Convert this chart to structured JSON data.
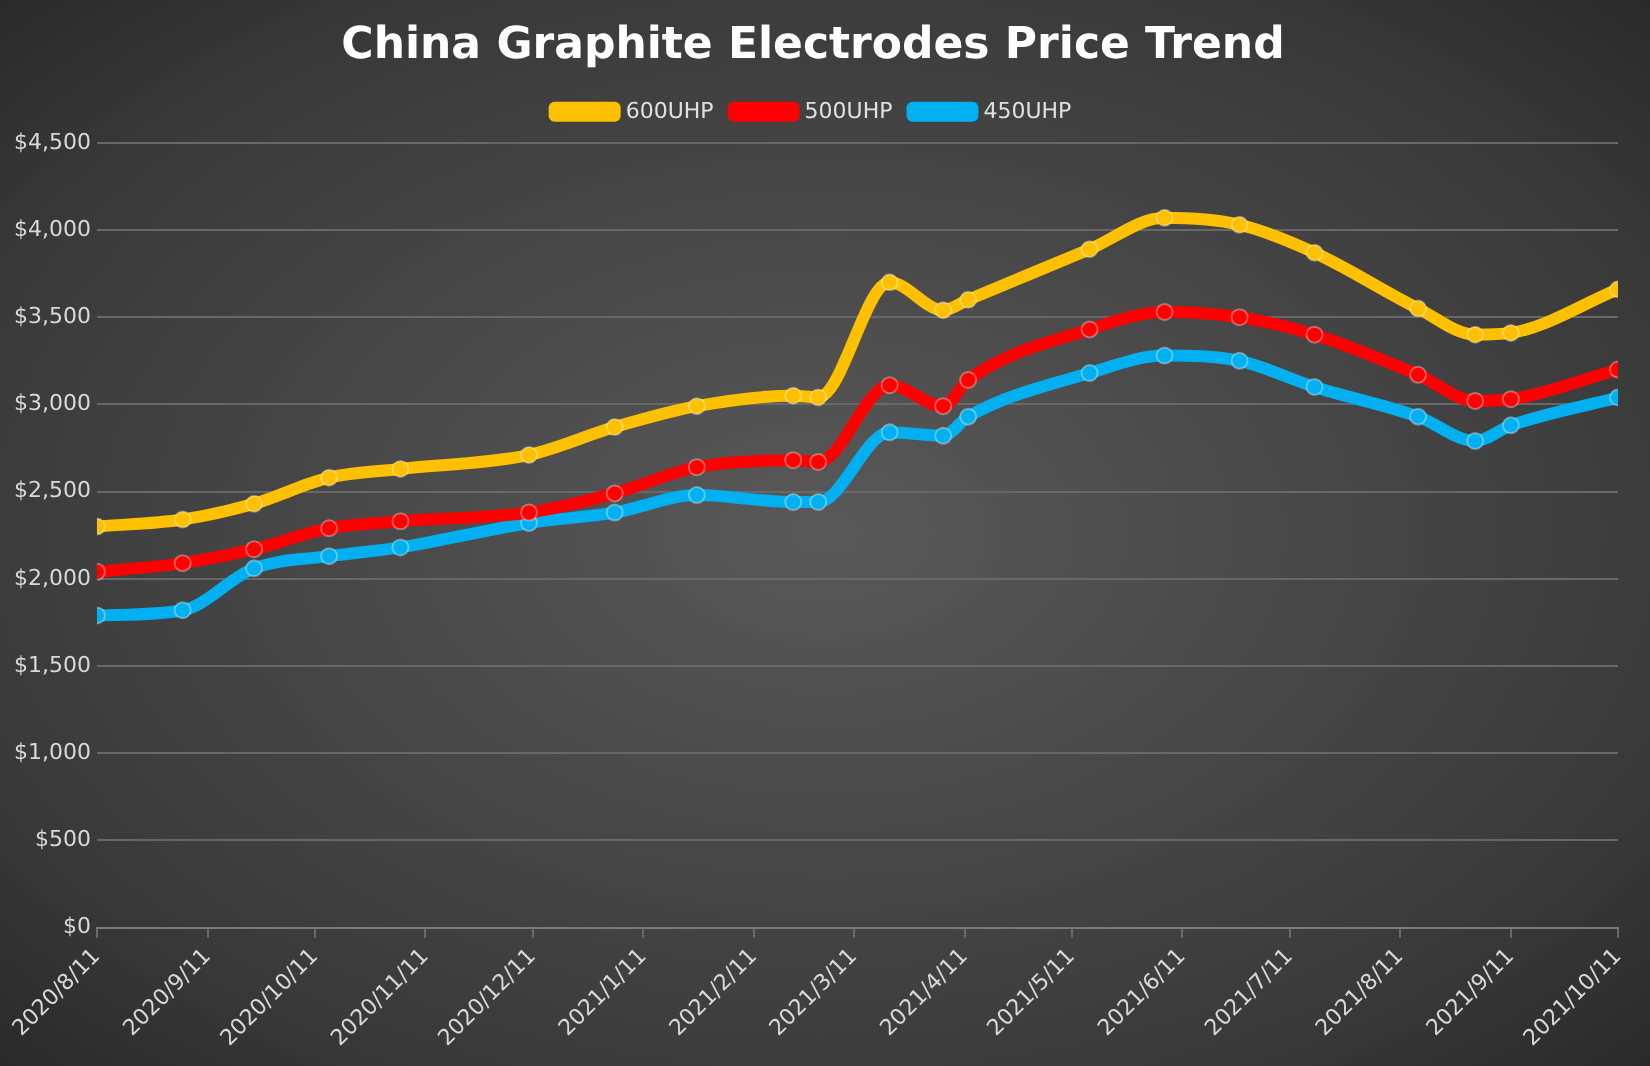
{
  "chart_data": {
    "type": "line",
    "title": "China Graphite Electrodes Price Trend",
    "x": [
      "2020-08-11",
      "2020-09-04",
      "2020-09-24",
      "2020-10-15",
      "2020-11-04",
      "2020-12-10",
      "2021-01-03",
      "2021-01-26",
      "2021-02-22",
      "2021-03-01",
      "2021-03-21",
      "2021-04-05",
      "2021-04-12",
      "2021-05-16",
      "2021-06-06",
      "2021-06-27",
      "2021-07-18",
      "2021-08-16",
      "2021-09-01",
      "2021-09-11",
      "2021-10-11"
    ],
    "series": [
      {
        "name": "600UHP",
        "color": "#ffc000",
        "values": [
          2300,
          2340,
          2430,
          2580,
          2630,
          2710,
          2870,
          2990,
          3050,
          3040,
          3700,
          3540,
          3600,
          3890,
          4070,
          4030,
          3870,
          3550,
          3400,
          3410,
          3660
        ]
      },
      {
        "name": "500UHP",
        "color": "#ff0000",
        "values": [
          2040,
          2090,
          2170,
          2290,
          2330,
          2380,
          2490,
          2640,
          2680,
          2670,
          3110,
          2990,
          3140,
          3430,
          3530,
          3500,
          3400,
          3170,
          3020,
          3030,
          3200
        ]
      },
      {
        "name": "450UHP",
        "color": "#00b0f0",
        "values": [
          1790,
          1820,
          2060,
          2130,
          2180,
          2320,
          2380,
          2480,
          2440,
          2440,
          2840,
          2820,
          2930,
          3180,
          3280,
          3250,
          3100,
          2930,
          2790,
          2880,
          3040
        ]
      }
    ],
    "xlim": [
      "2020-08-11",
      "2021-10-11"
    ],
    "xticks": [
      {
        "value": "2020-08-11",
        "label": "2020/8/11"
      },
      {
        "value": "2020-09-11",
        "label": "2020/9/11"
      },
      {
        "value": "2020-10-11",
        "label": "2020/10/11"
      },
      {
        "value": "2020-11-11",
        "label": "2020/11/11"
      },
      {
        "value": "2020-12-11",
        "label": "2020/12/11"
      },
      {
        "value": "2021-01-11",
        "label": "2021/1/11"
      },
      {
        "value": "2021-02-11",
        "label": "2021/2/11"
      },
      {
        "value": "2021-03-11",
        "label": "2021/3/11"
      },
      {
        "value": "2021-04-11",
        "label": "2021/4/11"
      },
      {
        "value": "2021-05-11",
        "label": "2021/5/11"
      },
      {
        "value": "2021-06-11",
        "label": "2021/6/11"
      },
      {
        "value": "2021-07-11",
        "label": "2021/7/11"
      },
      {
        "value": "2021-08-11",
        "label": "2021/8/11"
      },
      {
        "value": "2021-09-11",
        "label": "2021/9/11"
      },
      {
        "value": "2021-10-11",
        "label": "2021/10/11"
      }
    ],
    "ylim": [
      0,
      4500
    ],
    "yticks": [
      {
        "value": 0,
        "label": "$0"
      },
      {
        "value": 500,
        "label": "$500"
      },
      {
        "value": 1000,
        "label": "$1,000"
      },
      {
        "value": 1500,
        "label": "$1,500"
      },
      {
        "value": 2000,
        "label": "$2,000"
      },
      {
        "value": 2500,
        "label": "$2,500"
      },
      {
        "value": 3000,
        "label": "$3,000"
      },
      {
        "value": 3500,
        "label": "$3,500"
      },
      {
        "value": 4000,
        "label": "$4,000"
      },
      {
        "value": 4500,
        "label": "$4,500"
      }
    ],
    "grid": "y",
    "legend": "top",
    "marker": "circle",
    "line_style": "solid"
  }
}
